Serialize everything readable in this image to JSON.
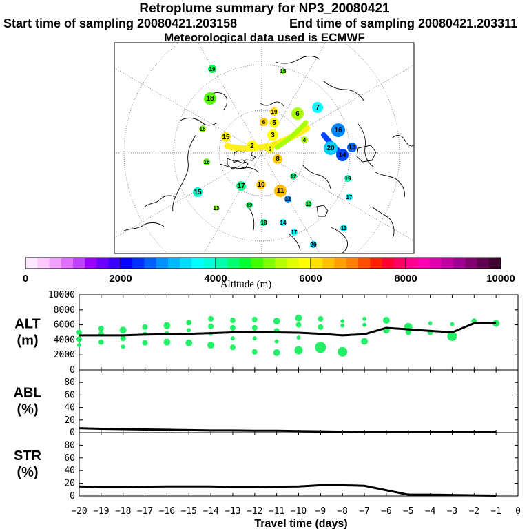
{
  "header": {
    "title": "Retroplume summary for NP3_20080421",
    "start": "Start time of sampling 20080421.203158",
    "end": "End time of sampling 20080421.203311",
    "met": "Meteorological data used is ECMWF"
  },
  "colorbar": {
    "label": "Altitude (m)",
    "ticks": [
      0,
      2000,
      4000,
      6000,
      8000,
      10000
    ],
    "tick_labels": [
      "0",
      "2000",
      "4000",
      "6000",
      "8000",
      "10000"
    ]
  },
  "map_labels": [
    {
      "t": "19",
      "c": "#00ff55"
    },
    {
      "t": "18",
      "c": "#55ff00"
    },
    {
      "t": "19",
      "c": "#ffdd00"
    },
    {
      "t": "16",
      "c": "#88ff00"
    },
    {
      "t": "15",
      "c": "#ffee00"
    },
    {
      "t": "7",
      "c": "#00ffff"
    },
    {
      "t": "6",
      "c": "#aaff00"
    },
    {
      "t": "5",
      "c": "#ffff00"
    },
    {
      "t": "4",
      "c": "#aaff00"
    },
    {
      "t": "3",
      "c": "#ffff00"
    },
    {
      "t": "2",
      "c": "#ffff00"
    },
    {
      "t": "16",
      "c": "#0088ff"
    },
    {
      "t": "13",
      "c": "#0066ff"
    },
    {
      "t": "20",
      "c": "#00ccff"
    },
    {
      "t": "14",
      "c": "#0044ff"
    },
    {
      "t": "10",
      "c": "#ffcc00"
    },
    {
      "t": "11",
      "c": "#ffbb00"
    },
    {
      "t": "17",
      "c": "#00ff88"
    },
    {
      "t": "12",
      "c": "#00ff66"
    },
    {
      "t": "19",
      "c": "#00ffaa"
    },
    {
      "t": "17",
      "c": "#00ffff"
    },
    {
      "t": "18",
      "c": "#00ff88"
    },
    {
      "t": "13",
      "c": "#00ff55"
    },
    {
      "t": "15",
      "c": "#00ffcc"
    },
    {
      "t": "20",
      "c": "#00bbff"
    },
    {
      "t": "16",
      "c": "#55ff00"
    },
    {
      "t": "8",
      "c": "#ffcc00"
    },
    {
      "t": "9",
      "c": "#ffff00"
    },
    {
      "t": "6",
      "c": "#ffcc00"
    },
    {
      "t": "15",
      "c": "#55ff00"
    },
    {
      "t": "12",
      "c": "#00ff88"
    },
    {
      "t": "14",
      "c": "#00ffff"
    },
    {
      "t": "17",
      "c": "#00ffff"
    },
    {
      "t": "11",
      "c": "#00ddff"
    },
    {
      "t": "22",
      "c": "#0088ff"
    },
    {
      "t": "13",
      "c": "#88ff00"
    }
  ],
  "chart_data": [
    {
      "type": "scatter",
      "panel": "ALT",
      "ylabel": "ALT\n(m)",
      "ylabel_lines": [
        "ALT",
        "(m)"
      ],
      "ylim": [
        0,
        10000
      ],
      "yticks": [
        0,
        2000,
        4000,
        6000,
        8000,
        10000
      ],
      "ytick_labels": [
        "0",
        "2000",
        "4000",
        "6000",
        "8000",
        "10000"
      ],
      "xlim": [
        -20,
        0
      ],
      "line": {
        "x": [
          -20,
          -19,
          -18,
          -17,
          -16,
          -15,
          -14,
          -13,
          -12,
          -11,
          -10,
          -9,
          -8,
          -7,
          -6,
          -5,
          -4,
          -3,
          -2,
          -1
        ],
        "y": [
          4600,
          4600,
          4600,
          4700,
          4750,
          4800,
          4900,
          5000,
          5050,
          5000,
          4950,
          4800,
          4600,
          4750,
          5600,
          5400,
          5200,
          5000,
          6200,
          6200
        ]
      },
      "points": [
        {
          "x": -20,
          "y": 5000,
          "s": 4
        },
        {
          "x": -20,
          "y": 4100,
          "s": 4
        },
        {
          "x": -20,
          "y": 3300,
          "s": 3
        },
        {
          "x": -19,
          "y": 5500,
          "s": 4
        },
        {
          "x": -19,
          "y": 4800,
          "s": 4
        },
        {
          "x": -19,
          "y": 3700,
          "s": 4
        },
        {
          "x": -18,
          "y": 5300,
          "s": 5
        },
        {
          "x": -18,
          "y": 4200,
          "s": 4
        },
        {
          "x": -18,
          "y": 3100,
          "s": 3
        },
        {
          "x": -17,
          "y": 5700,
          "s": 4
        },
        {
          "x": -17,
          "y": 4800,
          "s": 3
        },
        {
          "x": -17,
          "y": 3600,
          "s": 4
        },
        {
          "x": -16,
          "y": 5900,
          "s": 5
        },
        {
          "x": -16,
          "y": 4900,
          "s": 3
        },
        {
          "x": -16,
          "y": 3700,
          "s": 5
        },
        {
          "x": -15,
          "y": 6300,
          "s": 4
        },
        {
          "x": -15,
          "y": 5300,
          "s": 3
        },
        {
          "x": -15,
          "y": 3600,
          "s": 5
        },
        {
          "x": -14,
          "y": 6800,
          "s": 4
        },
        {
          "x": -14,
          "y": 5800,
          "s": 4
        },
        {
          "x": -14,
          "y": 4800,
          "s": 3
        },
        {
          "x": -14,
          "y": 3300,
          "s": 5
        },
        {
          "x": -13,
          "y": 6600,
          "s": 4
        },
        {
          "x": -13,
          "y": 5600,
          "s": 4
        },
        {
          "x": -13,
          "y": 4200,
          "s": 3
        },
        {
          "x": -13,
          "y": 3000,
          "s": 4
        },
        {
          "x": -12,
          "y": 6700,
          "s": 4
        },
        {
          "x": -12,
          "y": 5600,
          "s": 4
        },
        {
          "x": -12,
          "y": 4200,
          "s": 3
        },
        {
          "x": -12,
          "y": 2400,
          "s": 4
        },
        {
          "x": -11,
          "y": 6500,
          "s": 5
        },
        {
          "x": -11,
          "y": 5200,
          "s": 4
        },
        {
          "x": -11,
          "y": 3800,
          "s": 3
        },
        {
          "x": -11,
          "y": 2300,
          "s": 5
        },
        {
          "x": -10,
          "y": 6900,
          "s": 5
        },
        {
          "x": -10,
          "y": 6000,
          "s": 4
        },
        {
          "x": -10,
          "y": 4300,
          "s": 3
        },
        {
          "x": -10,
          "y": 2600,
          "s": 6
        },
        {
          "x": -9,
          "y": 6800,
          "s": 4
        },
        {
          "x": -9,
          "y": 5700,
          "s": 4
        },
        {
          "x": -9,
          "y": 3000,
          "s": 8
        },
        {
          "x": -8,
          "y": 6500,
          "s": 3
        },
        {
          "x": -8,
          "y": 5900,
          "s": 3
        },
        {
          "x": -8,
          "y": 2400,
          "s": 7
        },
        {
          "x": -7,
          "y": 6800,
          "s": 3
        },
        {
          "x": -7,
          "y": 6000,
          "s": 3
        },
        {
          "x": -7,
          "y": 3800,
          "s": 5
        },
        {
          "x": -6,
          "y": 6600,
          "s": 5
        },
        {
          "x": -6,
          "y": 5300,
          "s": 5
        },
        {
          "x": -5,
          "y": 5700,
          "s": 6
        },
        {
          "x": -5,
          "y": 5000,
          "s": 4
        },
        {
          "x": -4,
          "y": 6200,
          "s": 3
        },
        {
          "x": -4,
          "y": 5000,
          "s": 4
        },
        {
          "x": -3,
          "y": 6100,
          "s": 3
        },
        {
          "x": -3,
          "y": 4500,
          "s": 7
        },
        {
          "x": -2,
          "y": 6500,
          "s": 4
        },
        {
          "x": -1,
          "y": 6200,
          "s": 5
        }
      ]
    },
    {
      "type": "line",
      "panel": "ABL",
      "ylabel_lines": [
        "ABL",
        "(%)"
      ],
      "ylim": [
        0,
        100
      ],
      "yticks": [
        0,
        20,
        40,
        60,
        80
      ],
      "ytick_labels": [
        "0",
        "20",
        "40",
        "60",
        "80"
      ],
      "xlim": [
        -20,
        0
      ],
      "x": [
        -20,
        -19,
        -18,
        -17,
        -16,
        -15,
        -14,
        -13,
        -12,
        -11,
        -10,
        -9,
        -8,
        -7,
        -6,
        -5,
        -4,
        -3,
        -2,
        -1
      ],
      "y": [
        7,
        6,
        5.5,
        5,
        4.5,
        4,
        3.5,
        3.5,
        3,
        3,
        2.5,
        2,
        1.5,
        0.5,
        0.5,
        0.5,
        0.5,
        0.5,
        0.5,
        0.5
      ]
    },
    {
      "type": "line",
      "panel": "STR",
      "ylabel_lines": [
        "STR",
        "(%)"
      ],
      "ylim": [
        0,
        100
      ],
      "yticks": [
        0,
        20,
        40,
        60,
        80
      ],
      "ytick_labels": [
        "0",
        "20",
        "40",
        "60",
        "80"
      ],
      "xlim": [
        -20,
        0
      ],
      "xlabel": "Travel time (days)",
      "xticks": [
        -20,
        -19,
        -18,
        -17,
        -16,
        -15,
        -14,
        -13,
        -12,
        -11,
        -10,
        -9,
        -8,
        -7,
        -6,
        -5,
        -4,
        -3,
        -2,
        -1,
        0
      ],
      "xtick_labels": [
        "−20",
        "−19",
        "−18",
        "−17",
        "−16",
        "−15",
        "−14",
        "−13",
        "−12",
        "−11",
        "−10",
        "−9",
        "−8",
        "−7",
        "−6",
        "−5",
        "−4",
        "−3",
        "−2",
        "−1",
        "0"
      ],
      "x": [
        -20,
        -19,
        -18,
        -17,
        -16,
        -15,
        -14,
        -13,
        -12,
        -11,
        -10,
        -9,
        -8,
        -7,
        -6,
        -5,
        -4,
        -3,
        -2,
        -1
      ],
      "y": [
        15,
        14,
        14,
        14.5,
        15,
        15,
        15,
        14,
        14,
        14.5,
        15,
        17,
        17,
        16,
        9,
        2,
        2,
        1.5,
        1,
        0.5
      ]
    }
  ]
}
